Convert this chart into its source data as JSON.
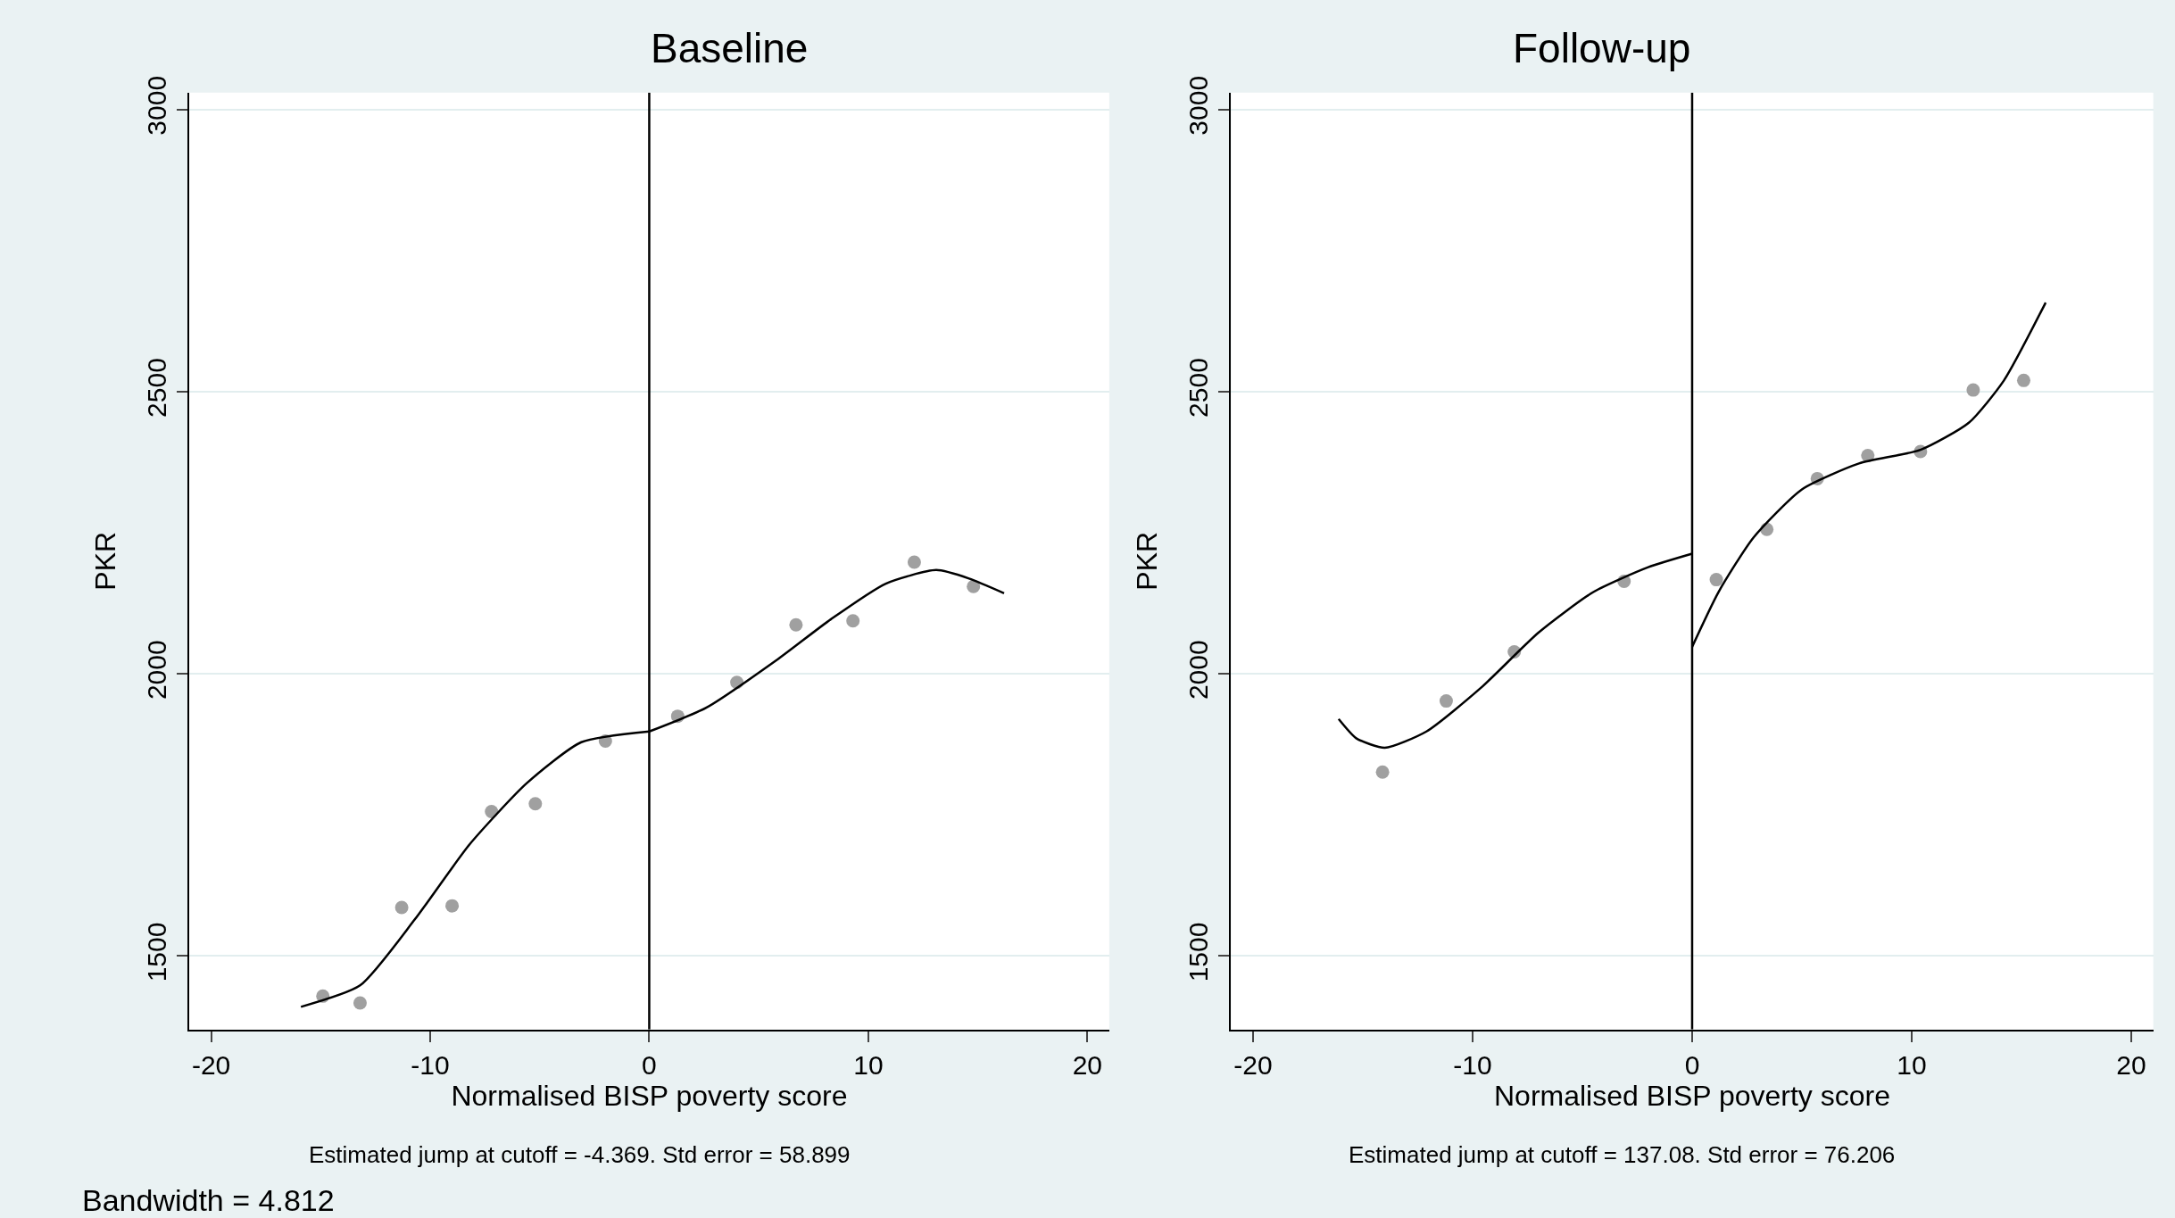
{
  "chart_data": [
    {
      "type": "scatter",
      "title": "Baseline",
      "xlabel": "Normalised BISP poverty score",
      "ylabel": "PKR",
      "xlim": [
        -21,
        21
      ],
      "xticks": [
        -20,
        -10,
        0,
        10,
        20
      ],
      "ylim": [
        1370,
        3030
      ],
      "yticks": [
        1500,
        2000,
        2500,
        3000
      ],
      "grid": "y",
      "ref_lines": [
        {
          "axis": "x",
          "value": 0,
          "color": "#000000"
        }
      ],
      "annotations": [
        "Estimated jump at cutoff = -4.369. Std error = 58.899",
        "Bandwidth = 4.812"
      ],
      "series": [
        {
          "marker": "circle",
          "color": "#a0a0a0",
          "x": [
            -14.9,
            -13.2,
            -11.3,
            -9.0,
            -7.2,
            -5.2,
            -2.0,
            1.3,
            4.0,
            6.7,
            9.3,
            12.1,
            14.8
          ],
          "values": [
            1429,
            1417,
            1586,
            1589,
            1756,
            1770,
            1881,
            1925,
            1985,
            2087,
            2094,
            2198,
            2155
          ]
        },
        {
          "type": "line",
          "color": "#000000",
          "x": [
            -15.9,
            -13.2,
            -10.7,
            -8.2,
            -5.6,
            -3.1,
            0
          ],
          "values": [
            1410,
            1448,
            1565,
            1698,
            1806,
            1879,
            1898
          ]
        },
        {
          "type": "line",
          "color": "#000000",
          "x": [
            0,
            2.6,
            5.8,
            8.3,
            10.8,
            13.1,
            14.6,
            16.2
          ],
          "values": [
            1898,
            1940,
            2024,
            2097,
            2160,
            2184,
            2169,
            2143
          ]
        }
      ]
    },
    {
      "type": "scatter",
      "title": "Follow-up",
      "xlabel": "Normalised BISP poverty score",
      "ylabel": "PKR",
      "xlim": [
        -21,
        21
      ],
      "xticks": [
        -20,
        -10,
        0,
        10,
        20
      ],
      "ylim": [
        1370,
        3030
      ],
      "yticks": [
        1500,
        2000,
        2500,
        3000
      ],
      "grid": "y",
      "ref_lines": [
        {
          "axis": "x",
          "value": 0,
          "color": "#000000"
        }
      ],
      "annotations": [
        "Estimated jump at cutoff = 137.08. Std error = 76.206"
      ],
      "series": [
        {
          "marker": "circle",
          "color": "#a0a0a0",
          "x": [
            -14.1,
            -11.2,
            -8.1,
            -3.1,
            1.1,
            3.4,
            5.7,
            8.0,
            10.4,
            12.8,
            15.1
          ],
          "values": [
            1826,
            1952,
            2039,
            2164,
            2167,
            2256,
            2346,
            2387,
            2394,
            2503,
            2520
          ]
        },
        {
          "type": "line",
          "color": "#000000",
          "x": [
            -16.1,
            -15.3,
            -14.0,
            -12.1,
            -9.6,
            -7.0,
            -4.5,
            -2.0,
            0
          ],
          "values": [
            1920,
            1886,
            1869,
            1898,
            1976,
            2073,
            2145,
            2189,
            2213
          ]
        },
        {
          "type": "line",
          "color": "#000000",
          "x": [
            0,
            1.2,
            2.8,
            5.0,
            7.6,
            10.4,
            12.6,
            14.2,
            16.1
          ],
          "values": [
            2048,
            2145,
            2242,
            2327,
            2373,
            2397,
            2445,
            2520,
            2658
          ]
        }
      ]
    }
  ]
}
